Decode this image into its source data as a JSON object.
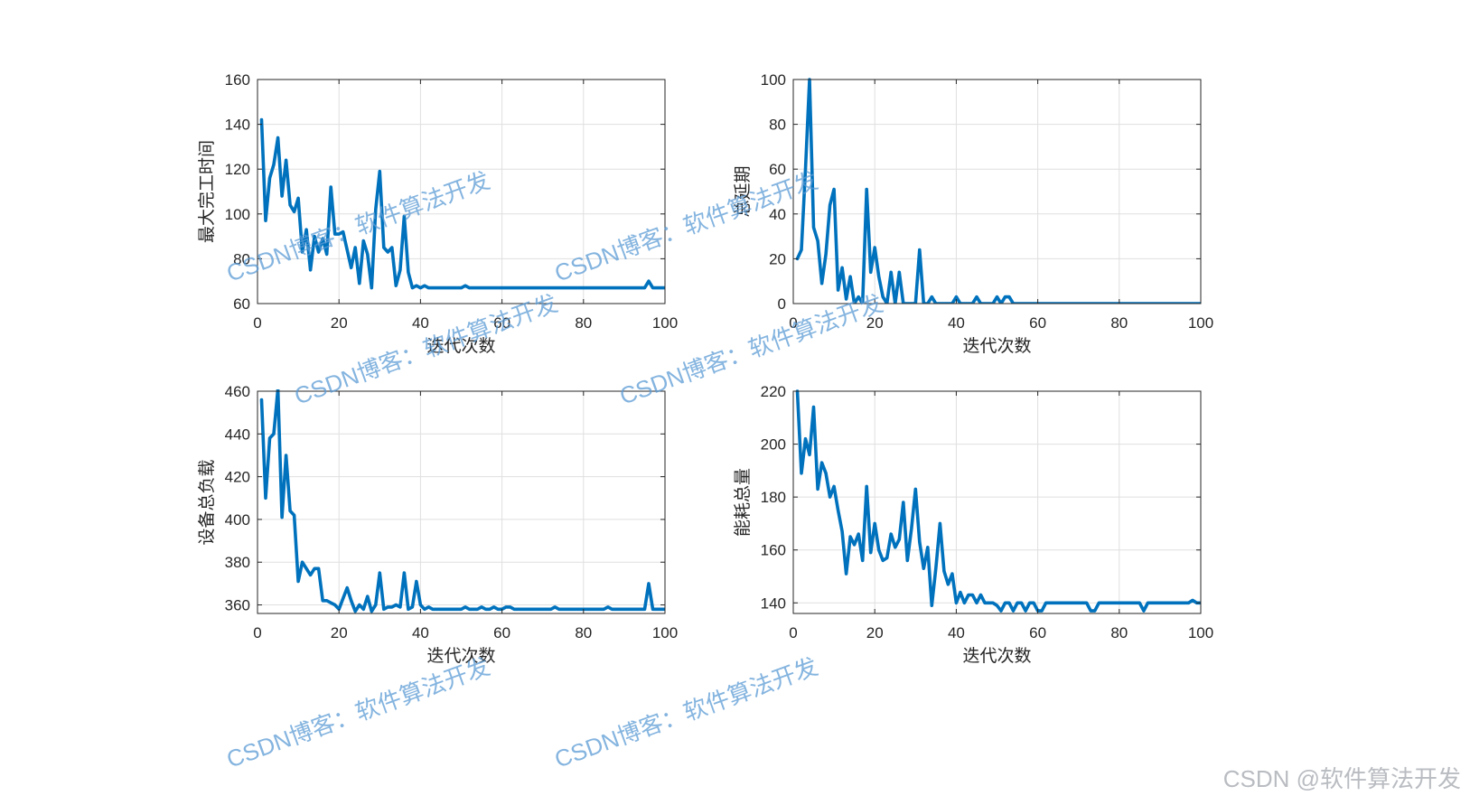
{
  "chart_data": [
    {
      "type": "line",
      "xlabel": "迭代次数",
      "ylabel": "最大完工时间",
      "xlim": [
        0,
        100
      ],
      "ylim": [
        60,
        160
      ],
      "xticks": [
        0,
        20,
        40,
        60,
        80,
        100
      ],
      "yticks": [
        60,
        80,
        100,
        120,
        140,
        160
      ],
      "grid": true,
      "color": "#0072bd",
      "x": [
        1,
        2,
        3,
        4,
        5,
        6,
        7,
        8,
        9,
        10,
        11,
        12,
        13,
        14,
        15,
        16,
        17,
        18,
        19,
        20,
        21,
        22,
        23,
        24,
        25,
        26,
        27,
        28,
        29,
        30,
        31,
        32,
        33,
        34,
        35,
        36,
        37,
        38,
        39,
        40,
        41,
        42,
        43,
        44,
        45,
        46,
        47,
        48,
        49,
        50,
        51,
        52,
        53,
        54,
        55,
        56,
        57,
        58,
        59,
        60,
        61,
        62,
        63,
        64,
        65,
        66,
        67,
        68,
        69,
        70,
        71,
        72,
        73,
        74,
        75,
        76,
        77,
        78,
        79,
        80,
        81,
        82,
        83,
        84,
        85,
        86,
        87,
        88,
        89,
        90,
        91,
        92,
        93,
        94,
        95,
        96,
        97,
        98,
        99,
        100
      ],
      "y": [
        142,
        97,
        116,
        122,
        134,
        108,
        124,
        104,
        101,
        107,
        83,
        93,
        75,
        90,
        83,
        89,
        82,
        112,
        91,
        91,
        92,
        84,
        76,
        85,
        69,
        88,
        82,
        67,
        102,
        119,
        85,
        83,
        85,
        68,
        75,
        99,
        74,
        67,
        68,
        67,
        68,
        67,
        67,
        67,
        67,
        67,
        67,
        67,
        67,
        67,
        68,
        67,
        67,
        67,
        67,
        67,
        67,
        67,
        67,
        67,
        67,
        67,
        67,
        67,
        67,
        67,
        67,
        67,
        67,
        67,
        67,
        67,
        67,
        67,
        67,
        67,
        67,
        67,
        67,
        67,
        67,
        67,
        67,
        67,
        67,
        67,
        67,
        67,
        67,
        67,
        67,
        67,
        67,
        67,
        67,
        70,
        67,
        67,
        67,
        67
      ]
    },
    {
      "type": "line",
      "xlabel": "迭代次数",
      "ylabel": "总延期",
      "xlim": [
        0,
        100
      ],
      "ylim": [
        0,
        100
      ],
      "xticks": [
        0,
        20,
        40,
        60,
        80,
        100
      ],
      "yticks": [
        0,
        20,
        40,
        60,
        80,
        100
      ],
      "grid": true,
      "color": "#0072bd",
      "x": [
        1,
        2,
        3,
        4,
        5,
        6,
        7,
        8,
        9,
        10,
        11,
        12,
        13,
        14,
        15,
        16,
        17,
        18,
        19,
        20,
        21,
        22,
        23,
        24,
        25,
        26,
        27,
        28,
        29,
        30,
        31,
        32,
        33,
        34,
        35,
        36,
        37,
        38,
        39,
        40,
        41,
        42,
        43,
        44,
        45,
        46,
        47,
        48,
        49,
        50,
        51,
        52,
        53,
        54,
        55,
        56,
        57,
        58,
        59,
        60,
        61,
        62,
        63,
        64,
        65,
        66,
        67,
        68,
        69,
        70,
        71,
        72,
        73,
        74,
        75,
        76,
        77,
        78,
        79,
        80,
        81,
        82,
        83,
        84,
        85,
        86,
        87,
        88,
        89,
        90,
        91,
        92,
        93,
        94,
        95,
        96,
        97,
        98,
        99,
        100
      ],
      "y": [
        20,
        24,
        60,
        100,
        34,
        28,
        9,
        22,
        44,
        51,
        6,
        16,
        2,
        12,
        0,
        3,
        0,
        51,
        14,
        25,
        12,
        3,
        0,
        14,
        0,
        14,
        0,
        0,
        0,
        0,
        24,
        0,
        0,
        3,
        0,
        0,
        0,
        0,
        0,
        3,
        0,
        0,
        0,
        0,
        3,
        0,
        0,
        0,
        0,
        3,
        0,
        3,
        3,
        0,
        0,
        0,
        0,
        0,
        0,
        0,
        0,
        0,
        0,
        0,
        0,
        0,
        0,
        0,
        0,
        0,
        0,
        0,
        0,
        0,
        0,
        0,
        0,
        0,
        0,
        0,
        0,
        0,
        0,
        0,
        0,
        0,
        0,
        0,
        0,
        0,
        0,
        0,
        0,
        0,
        0,
        0,
        0,
        0,
        0,
        0
      ]
    },
    {
      "type": "line",
      "xlabel": "迭代次数",
      "ylabel": "设备总负载",
      "xlim": [
        0,
        100
      ],
      "ylim": [
        356,
        460
      ],
      "xticks": [
        0,
        20,
        40,
        60,
        80,
        100
      ],
      "yticks": [
        360,
        380,
        400,
        420,
        440,
        460
      ],
      "grid": true,
      "color": "#0072bd",
      "x": [
        1,
        2,
        3,
        4,
        5,
        6,
        7,
        8,
        9,
        10,
        11,
        12,
        13,
        14,
        15,
        16,
        17,
        18,
        19,
        20,
        21,
        22,
        23,
        24,
        25,
        26,
        27,
        28,
        29,
        30,
        31,
        32,
        33,
        34,
        35,
        36,
        37,
        38,
        39,
        40,
        41,
        42,
        43,
        44,
        45,
        46,
        47,
        48,
        49,
        50,
        51,
        52,
        53,
        54,
        55,
        56,
        57,
        58,
        59,
        60,
        61,
        62,
        63,
        64,
        65,
        66,
        67,
        68,
        69,
        70,
        71,
        72,
        73,
        74,
        75,
        76,
        77,
        78,
        79,
        80,
        81,
        82,
        83,
        84,
        85,
        86,
        87,
        88,
        89,
        90,
        91,
        92,
        93,
        94,
        95,
        96,
        97,
        98,
        99,
        100
      ],
      "y": [
        456,
        410,
        438,
        440,
        461,
        401,
        430,
        404,
        402,
        371,
        380,
        377,
        374,
        377,
        377,
        362,
        362,
        361,
        360,
        358,
        363,
        368,
        362,
        357,
        360,
        358,
        364,
        357,
        360,
        375,
        358,
        359,
        359,
        360,
        359,
        375,
        358,
        359,
        371,
        360,
        358,
        359,
        358,
        358,
        358,
        358,
        358,
        358,
        358,
        358,
        359,
        358,
        358,
        358,
        359,
        358,
        358,
        359,
        358,
        358,
        359,
        359,
        358,
        358,
        358,
        358,
        358,
        358,
        358,
        358,
        358,
        358,
        359,
        358,
        358,
        358,
        358,
        358,
        358,
        358,
        358,
        358,
        358,
        358,
        358,
        359,
        358,
        358,
        358,
        358,
        358,
        358,
        358,
        358,
        358,
        370,
        358,
        358,
        358,
        358
      ]
    },
    {
      "type": "line",
      "xlabel": "迭代次数",
      "ylabel": "能耗总量",
      "xlim": [
        0,
        100
      ],
      "ylim": [
        136,
        220
      ],
      "xticks": [
        0,
        20,
        40,
        60,
        80,
        100
      ],
      "yticks": [
        140,
        160,
        180,
        200,
        220
      ],
      "grid": true,
      "color": "#0072bd",
      "x": [
        1,
        2,
        3,
        4,
        5,
        6,
        7,
        8,
        9,
        10,
        11,
        12,
        13,
        14,
        15,
        16,
        17,
        18,
        19,
        20,
        21,
        22,
        23,
        24,
        25,
        26,
        27,
        28,
        29,
        30,
        31,
        32,
        33,
        34,
        35,
        36,
        37,
        38,
        39,
        40,
        41,
        42,
        43,
        44,
        45,
        46,
        47,
        48,
        49,
        50,
        51,
        52,
        53,
        54,
        55,
        56,
        57,
        58,
        59,
        60,
        61,
        62,
        63,
        64,
        65,
        66,
        67,
        68,
        69,
        70,
        71,
        72,
        73,
        74,
        75,
        76,
        77,
        78,
        79,
        80,
        81,
        82,
        83,
        84,
        85,
        86,
        87,
        88,
        89,
        90,
        91,
        92,
        93,
        94,
        95,
        96,
        97,
        98,
        99,
        100
      ],
      "y": [
        220,
        189,
        202,
        196,
        214,
        183,
        193,
        189,
        180,
        184,
        175,
        167,
        151,
        165,
        162,
        166,
        156,
        184,
        159,
        170,
        160,
        156,
        157,
        166,
        161,
        164,
        178,
        156,
        168,
        183,
        163,
        153,
        161,
        139,
        153,
        170,
        152,
        147,
        151,
        140,
        144,
        140,
        143,
        143,
        140,
        143,
        140,
        140,
        140,
        139,
        137,
        140,
        140,
        137,
        140,
        140,
        137,
        140,
        140,
        137,
        137,
        140,
        140,
        140,
        140,
        140,
        140,
        140,
        140,
        140,
        140,
        140,
        137,
        137,
        140,
        140,
        140,
        140,
        140,
        140,
        140,
        140,
        140,
        140,
        140,
        137,
        140,
        140,
        140,
        140,
        140,
        140,
        140,
        140,
        140,
        140,
        140,
        141,
        140,
        140
      ]
    }
  ],
  "watermarks": {
    "plot_text": "CSDN博客：软件算法开发",
    "footer": "CSDN @软件算法开发"
  }
}
